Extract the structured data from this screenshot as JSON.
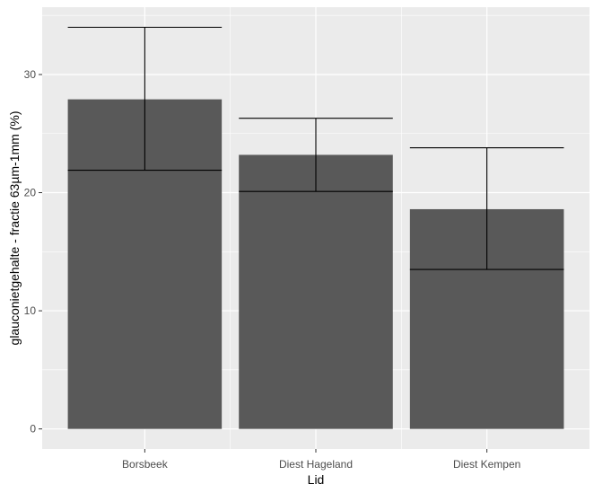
{
  "chart_data": {
    "type": "bar",
    "categories": [
      "Borsbeek",
      "Diest Hageland",
      "Diest Kempen"
    ],
    "values": [
      27.9,
      23.2,
      18.6
    ],
    "error_low": [
      21.9,
      20.1,
      13.5
    ],
    "error_high": [
      34.0,
      26.3,
      23.8
    ],
    "xlabel": "Lid",
    "ylabel": "glauconietgehalte - fractie 63µm-1mm (%)",
    "yticks": [
      0,
      10,
      20,
      30
    ],
    "ylim": [
      -1.7,
      35.7
    ],
    "grid": true,
    "colors": {
      "panel": "#ebebeb",
      "grid_major": "#ffffff",
      "bar": "#595959",
      "errorbar": "#000000"
    }
  }
}
